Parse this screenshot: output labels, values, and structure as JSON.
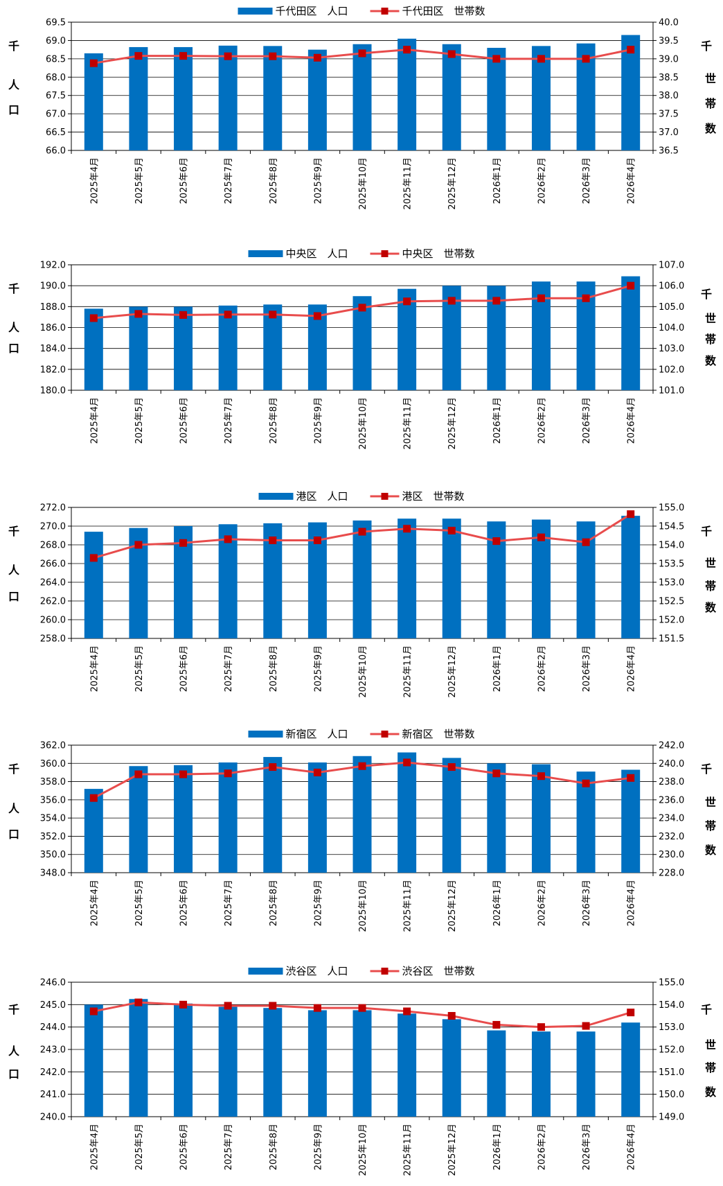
{
  "colors": {
    "bar": "#0070c0",
    "line": "#e84c4c",
    "marker": "#c00000",
    "grid": "#000000"
  },
  "unit_labels": {
    "left": [
      "千",
      "人",
      "口"
    ],
    "right": [
      "千",
      "世",
      "帯",
      "数"
    ]
  },
  "chart_data": [
    {
      "type": "bar+line",
      "categories": [
        "2025年4月",
        "2025年5月",
        "2025年6月",
        "2025年7月",
        "2025年8月",
        "2025年9月",
        "2025年10月",
        "2025年11月",
        "2025年12月",
        "2026年1月",
        "2026年2月",
        "2026年3月",
        "2026年4月"
      ],
      "bar_series": {
        "name": "千代田区　人口",
        "values": [
          68.65,
          68.82,
          68.82,
          68.86,
          68.85,
          68.75,
          68.9,
          69.05,
          68.9,
          68.8,
          68.85,
          68.92,
          69.15
        ]
      },
      "line_series": {
        "name": "千代田区　世帯数",
        "values": [
          38.88,
          39.08,
          39.08,
          39.07,
          39.07,
          39.03,
          39.15,
          39.25,
          39.13,
          39.0,
          39.0,
          39.0,
          39.25
        ]
      },
      "y_left": {
        "min": 66.0,
        "max": 69.5,
        "step": 0.5,
        "decimals": 1
      },
      "y_right": {
        "min": 36.5,
        "max": 40.0,
        "step": 0.5,
        "decimals": 1
      },
      "grid": true,
      "legend": "top"
    },
    {
      "type": "bar+line",
      "categories": [
        "2025年4月",
        "2025年5月",
        "2025年6月",
        "2025年7月",
        "2025年8月",
        "2025年9月",
        "2025年10月",
        "2025年11月",
        "2025年12月",
        "2026年1月",
        "2026年2月",
        "2026年3月",
        "2026年4月"
      ],
      "bar_series": {
        "name": "中央区　人口",
        "values": [
          187.8,
          188.0,
          188.0,
          188.1,
          188.2,
          188.2,
          189.0,
          189.7,
          190.0,
          190.0,
          190.4,
          190.4,
          190.9
        ]
      },
      "line_series": {
        "name": "中央区　世帯数",
        "values": [
          104.45,
          104.65,
          104.6,
          104.62,
          104.62,
          104.55,
          104.95,
          105.25,
          105.28,
          105.28,
          105.4,
          105.4,
          106.0
        ]
      },
      "y_left": {
        "min": 180.0,
        "max": 192.0,
        "step": 2.0,
        "decimals": 1
      },
      "y_right": {
        "min": 101.0,
        "max": 107.0,
        "step": 1.0,
        "decimals": 1
      },
      "grid": true,
      "legend": "top"
    },
    {
      "type": "bar+line",
      "categories": [
        "2025年4月",
        "2025年5月",
        "2025年6月",
        "2025年7月",
        "2025年8月",
        "2025年9月",
        "2025年10月",
        "2025年11月",
        "2025年12月",
        "2026年1月",
        "2026年2月",
        "2026年3月",
        "2026年4月"
      ],
      "bar_series": {
        "name": "港区　人口",
        "values": [
          269.4,
          269.8,
          270.0,
          270.2,
          270.3,
          270.4,
          270.6,
          270.8,
          270.8,
          270.5,
          270.7,
          270.5,
          271.1
        ]
      },
      "line_series": {
        "name": "港区　世帯数",
        "values": [
          153.65,
          154.0,
          154.05,
          154.15,
          154.12,
          154.12,
          154.35,
          154.43,
          154.38,
          154.1,
          154.2,
          154.07,
          154.82
        ]
      },
      "y_left": {
        "min": 258.0,
        "max": 272.0,
        "step": 2.0,
        "decimals": 1
      },
      "y_right": {
        "min": 151.5,
        "max": 155.0,
        "step": 0.5,
        "decimals": 1
      },
      "grid": true,
      "legend": "top"
    },
    {
      "type": "bar+line",
      "categories": [
        "2025年4月",
        "2025年5月",
        "2025年6月",
        "2025年7月",
        "2025年8月",
        "2025年9月",
        "2025年10月",
        "2025年11月",
        "2025年12月",
        "2026年1月",
        "2026年2月",
        "2026年3月",
        "2026年4月"
      ],
      "bar_series": {
        "name": "新宿区　人口",
        "values": [
          357.2,
          359.7,
          359.8,
          360.1,
          360.7,
          360.1,
          360.8,
          361.2,
          360.6,
          360.0,
          359.9,
          359.1,
          359.3
        ]
      },
      "line_series": {
        "name": "新宿区　世帯数",
        "values": [
          236.2,
          238.8,
          238.8,
          238.9,
          239.6,
          239.0,
          239.7,
          240.1,
          239.6,
          238.9,
          238.6,
          237.8,
          238.4
        ]
      },
      "y_left": {
        "min": 348.0,
        "max": 362.0,
        "step": 2.0,
        "decimals": 1
      },
      "y_right": {
        "min": 228.0,
        "max": 242.0,
        "step": 2.0,
        "decimals": 1
      },
      "grid": true,
      "legend": "top"
    },
    {
      "type": "bar+line",
      "categories": [
        "2025年4月",
        "2025年5月",
        "2025年6月",
        "2025年7月",
        "2025年8月",
        "2025年9月",
        "2025年10月",
        "2025年11月",
        "2025年12月",
        "2026年1月",
        "2026年2月",
        "2026年3月",
        "2026年4月"
      ],
      "bar_series": {
        "name": "渋谷区　人口",
        "values": [
          245.0,
          245.25,
          245.05,
          244.9,
          244.85,
          244.75,
          244.75,
          244.6,
          244.35,
          243.85,
          243.8,
          243.8,
          244.2
        ]
      },
      "line_series": {
        "name": "渋谷区　世帯数",
        "values": [
          153.7,
          154.1,
          154.0,
          153.95,
          153.95,
          153.85,
          153.85,
          153.7,
          153.5,
          153.1,
          153.0,
          153.05,
          153.65
        ]
      },
      "y_left": {
        "min": 240.0,
        "max": 246.0,
        "step": 1.0,
        "decimals": 1
      },
      "y_right": {
        "min": 149.0,
        "max": 155.0,
        "step": 1.0,
        "decimals": 1
      },
      "grid": true,
      "legend": "top"
    }
  ]
}
